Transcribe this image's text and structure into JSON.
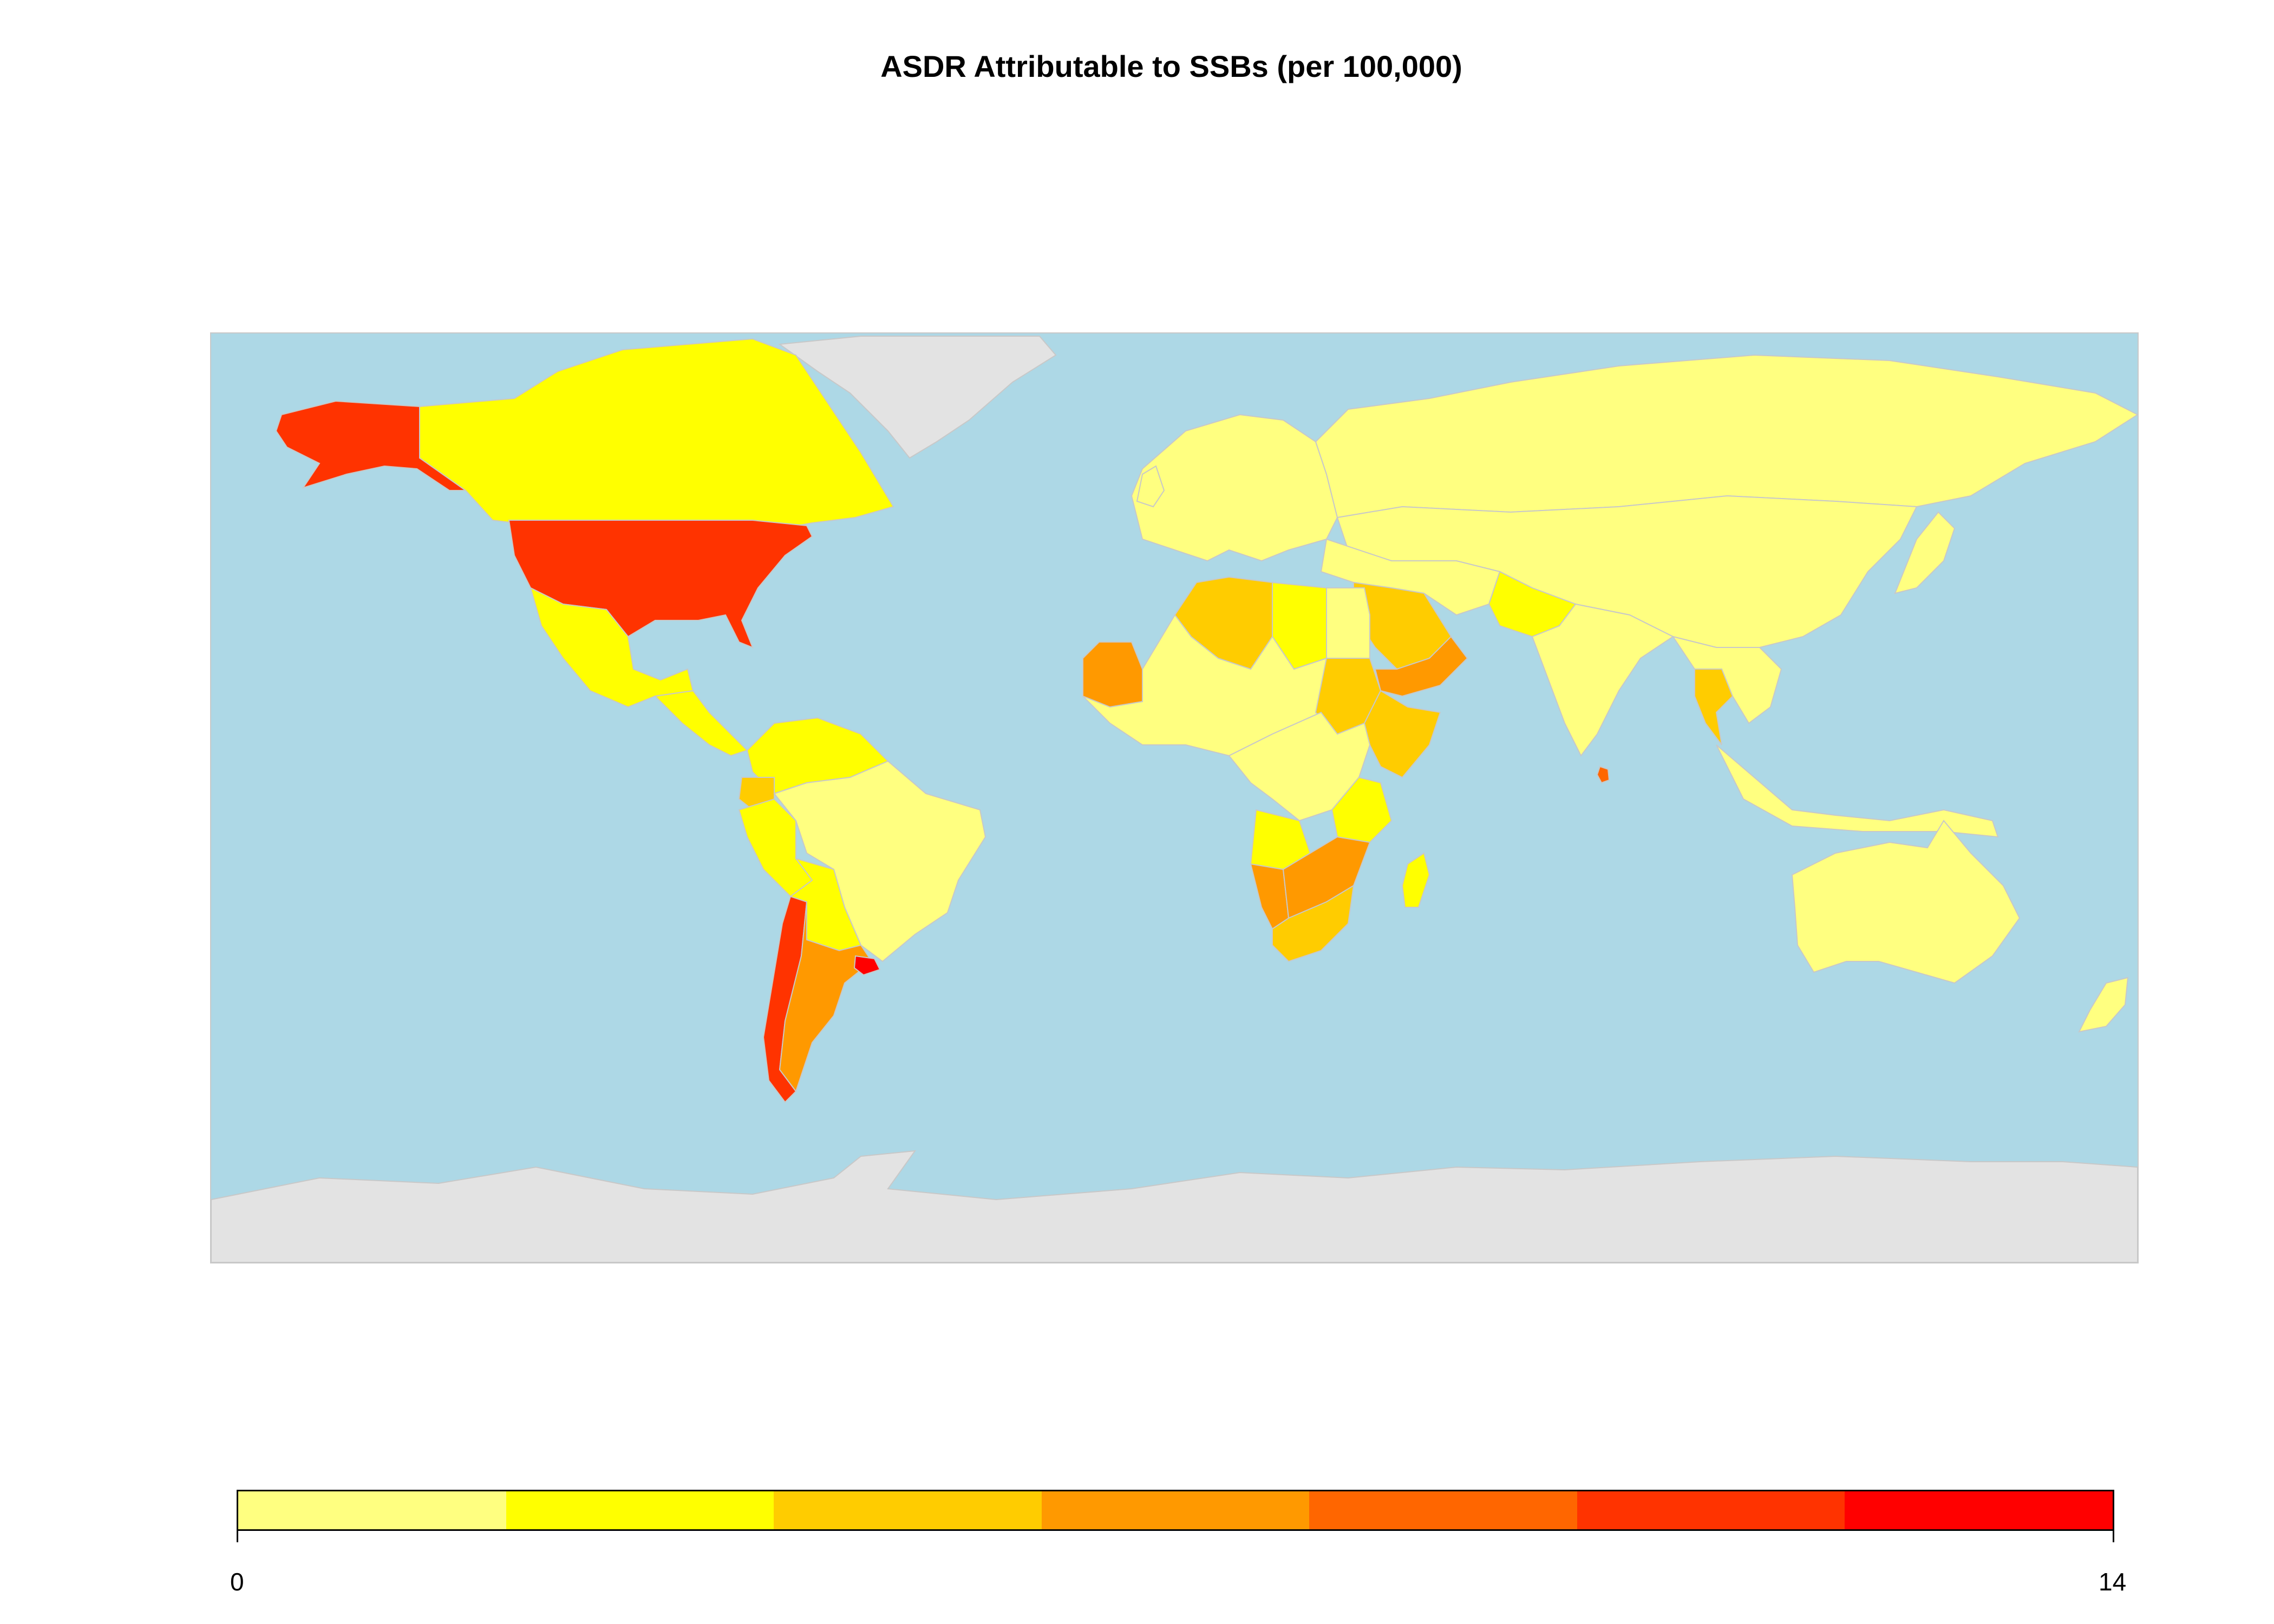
{
  "title": "ASDR Attributable to SSBs (per 100,000)",
  "map": {
    "ocean_color": "#add8e6",
    "no_data_color": "#e3e3e3",
    "border_color": "#c8c8c8"
  },
  "legend": {
    "min_label": "0",
    "max_label": "14",
    "bins": [
      {
        "color": "#ffff80",
        "from": 0,
        "to": 2
      },
      {
        "color": "#ffff00",
        "from": 2,
        "to": 4
      },
      {
        "color": "#ffcc00",
        "from": 4,
        "to": 6
      },
      {
        "color": "#ff9900",
        "from": 6,
        "to": 8
      },
      {
        "color": "#ff6600",
        "from": 8,
        "to": 10
      },
      {
        "color": "#ff3300",
        "from": 10,
        "to": 12
      },
      {
        "color": "#ff0000",
        "from": 12,
        "to": 14
      }
    ]
  },
  "regions": [
    {
      "name": "Greenland",
      "bin": null
    },
    {
      "name": "Antarctica",
      "bin": null
    },
    {
      "name": "United States",
      "bin": 5
    },
    {
      "name": "Alaska",
      "bin": 5
    },
    {
      "name": "Canada",
      "bin": 1
    },
    {
      "name": "Mexico",
      "bin": 1
    },
    {
      "name": "Central America",
      "bin": 1
    },
    {
      "name": "Colombia / Venezuela",
      "bin": 1
    },
    {
      "name": "Ecuador",
      "bin": 2
    },
    {
      "name": "Peru",
      "bin": 1
    },
    {
      "name": "Brazil",
      "bin": 0
    },
    {
      "name": "Bolivia / Paraguay",
      "bin": 1
    },
    {
      "name": "Chile",
      "bin": 5
    },
    {
      "name": "Argentina",
      "bin": 3
    },
    {
      "name": "Uruguay",
      "bin": 6
    },
    {
      "name": "Europe",
      "bin": 0
    },
    {
      "name": "Russia",
      "bin": 0
    },
    {
      "name": "China / Central Asia",
      "bin": 0
    },
    {
      "name": "Middle East",
      "bin": 0
    },
    {
      "name": "Saudi Arabia",
      "bin": 2
    },
    {
      "name": "Yemen / Oman",
      "bin": 3
    },
    {
      "name": "Pakistan",
      "bin": 1
    },
    {
      "name": "India",
      "bin": 0
    },
    {
      "name": "Sri Lanka",
      "bin": 4
    },
    {
      "name": "Thailand",
      "bin": 2
    },
    {
      "name": "Southeast Asia",
      "bin": 0
    },
    {
      "name": "Japan",
      "bin": 0
    },
    {
      "name": "Australia",
      "bin": 0
    },
    {
      "name": "New Zealand",
      "bin": 0
    },
    {
      "name": "Algeria",
      "bin": 2
    },
    {
      "name": "Libya",
      "bin": 1
    },
    {
      "name": "Egypt",
      "bin": 0
    },
    {
      "name": "Mauritania",
      "bin": 3
    },
    {
      "name": "West Africa",
      "bin": 0
    },
    {
      "name": "Sudan",
      "bin": 2
    },
    {
      "name": "Ethiopia / Somalia",
      "bin": 2
    },
    {
      "name": "Central Africa",
      "bin": 0
    },
    {
      "name": "Angola",
      "bin": 1
    },
    {
      "name": "Tanzania",
      "bin": 1
    },
    {
      "name": "Namibia",
      "bin": 3
    },
    {
      "name": "Botswana / Zimbabwe",
      "bin": 3
    },
    {
      "name": "South Africa",
      "bin": 2
    },
    {
      "name": "Madagascar",
      "bin": 1
    }
  ]
}
